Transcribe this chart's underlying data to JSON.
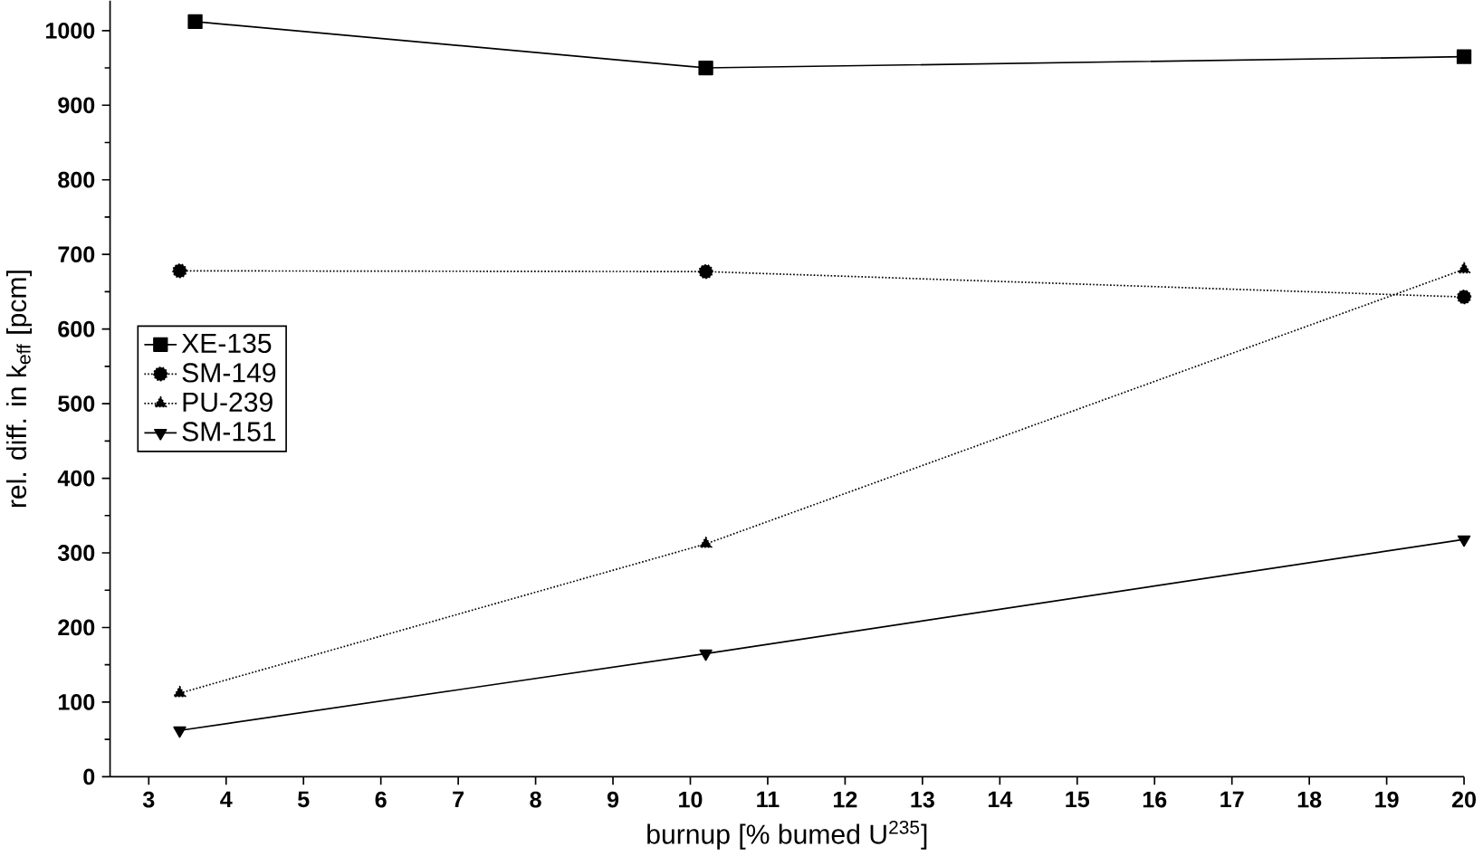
{
  "chart_data": {
    "type": "line",
    "xlabel": "burnup [% bumed U$^{235}$]",
    "ylabel": "rel. diff. in k$_{eff}$ [pcm]",
    "xlim": [
      2.5,
      20
    ],
    "xticks": [
      3,
      4,
      5,
      6,
      7,
      8,
      9,
      10,
      11,
      12,
      13,
      14,
      15,
      16,
      17,
      18,
      19,
      20
    ],
    "ylim": [
      0,
      1040
    ],
    "yticks": [
      0,
      100,
      200,
      300,
      400,
      500,
      600,
      700,
      800,
      900,
      1000
    ],
    "grid": false,
    "legend": "left",
    "series": [
      {
        "name": "XE-135",
        "color": "#000000",
        "marker": "square",
        "line_style": "solid",
        "x": [
          3.6,
          10.2,
          20
        ],
        "values": [
          1012,
          950,
          965
        ]
      },
      {
        "name": "SM-149",
        "color": "#000000",
        "marker": "circle",
        "line_style": "dotted",
        "x": [
          3.4,
          10.2,
          20
        ],
        "values": [
          678,
          677,
          643
        ]
      },
      {
        "name": "PU-239",
        "color": "#000000",
        "marker": "triangle",
        "line_style": "dotted",
        "x": [
          3.4,
          10.2,
          20
        ],
        "values": [
          112,
          312,
          680
        ]
      },
      {
        "name": "SM-151",
        "color": "#000000",
        "marker": "triangle-down",
        "line_style": "solid",
        "x": [
          3.4,
          10.2,
          20
        ],
        "values": [
          62,
          165,
          318
        ]
      }
    ]
  }
}
